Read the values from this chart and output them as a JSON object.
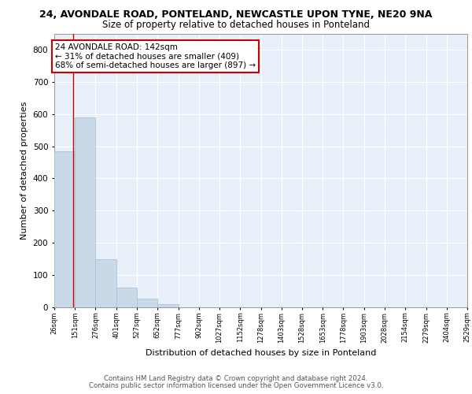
{
  "title": "24, AVONDALE ROAD, PONTELAND, NEWCASTLE UPON TYNE, NE20 9NA",
  "subtitle": "Size of property relative to detached houses in Ponteland",
  "xlabel": "Distribution of detached houses by size in Ponteland",
  "ylabel": "Number of detached properties",
  "bar_color": "#c9d9e8",
  "bar_edgecolor": "#a8c4d8",
  "background_color": "#e8eff8",
  "grid_color": "#ffffff",
  "annotation_line_color": "#cc0000",
  "annotation_text": "24 AVONDALE ROAD: 142sqm\n← 31% of detached houses are smaller (409)\n68% of semi-detached houses are larger (897) →",
  "annotation_box_color": "#ffffff",
  "annotation_box_edgecolor": "#cc0000",
  "property_size_sqm": 142,
  "bins": [
    26,
    151,
    276,
    401,
    527,
    652,
    777,
    902,
    1027,
    1152,
    1278,
    1403,
    1528,
    1653,
    1778,
    1903,
    2028,
    2154,
    2279,
    2404,
    2529
  ],
  "bin_labels": [
    "26sqm",
    "151sqm",
    "276sqm",
    "401sqm",
    "527sqm",
    "652sqm",
    "777sqm",
    "902sqm",
    "1027sqm",
    "1152sqm",
    "1278sqm",
    "1403sqm",
    "1528sqm",
    "1653sqm",
    "1778sqm",
    "1903sqm",
    "2028sqm",
    "2154sqm",
    "2279sqm",
    "2404sqm",
    "2529sqm"
  ],
  "bar_heights": [
    485,
    590,
    150,
    62,
    26,
    10,
    0,
    0,
    0,
    0,
    0,
    0,
    0,
    0,
    0,
    0,
    0,
    0,
    0,
    0
  ],
  "ylim": [
    0,
    850
  ],
  "yticks": [
    0,
    100,
    200,
    300,
    400,
    500,
    600,
    700,
    800
  ],
  "footer_line1": "Contains HM Land Registry data © Crown copyright and database right 2024.",
  "footer_line2": "Contains public sector information licensed under the Open Government Licence v3.0."
}
